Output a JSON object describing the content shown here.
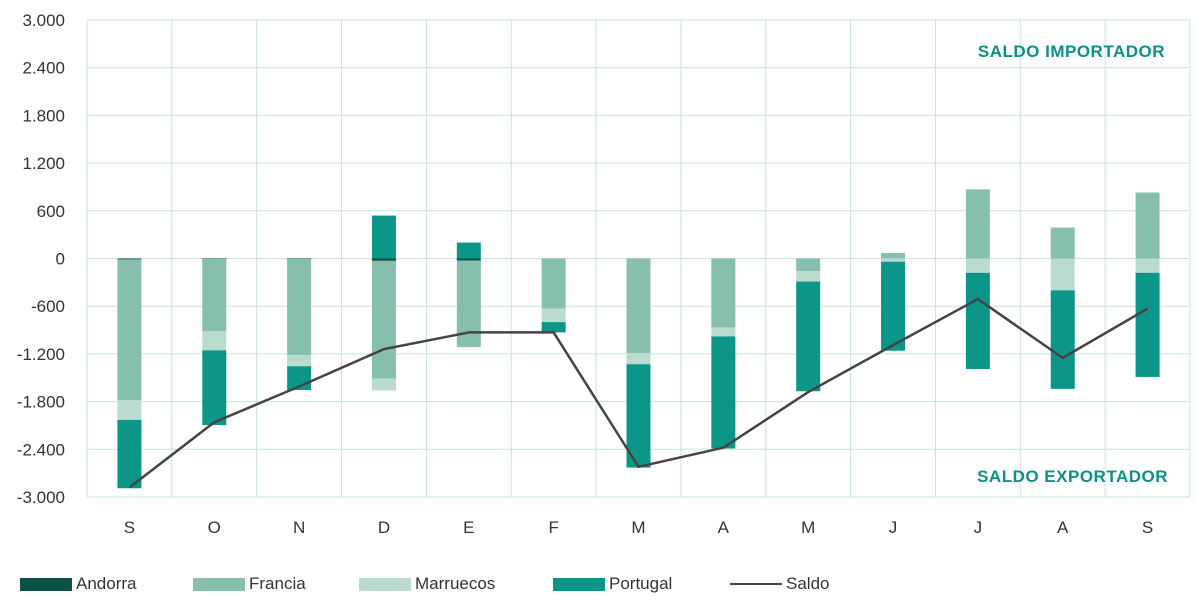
{
  "chart_data": {
    "type": "bar",
    "stacked": true,
    "categories": [
      "S",
      "O",
      "N",
      "D",
      "E",
      "F",
      "M",
      "A",
      "M",
      "J",
      "J",
      "A",
      "S"
    ],
    "yticks": [
      "3.000",
      "2.400",
      "1.800",
      "1.200",
      "600",
      "0",
      "-600",
      "-1.200",
      "-1.800",
      "-2.400",
      "-3.000"
    ],
    "ylim": [
      -3000,
      3000
    ],
    "grid": true,
    "annotations": {
      "top": "SALDO IMPORTADOR",
      "bottom": "SALDO EXPORTADOR"
    },
    "series": [
      {
        "name": "Andorra",
        "type": "bar",
        "color": "#0b5249",
        "values": [
          -10,
          -5,
          -5,
          -30,
          -25,
          0,
          0,
          0,
          0,
          0,
          0,
          0,
          0
        ]
      },
      {
        "name": "Francia",
        "type": "bar",
        "color": "#86bfae",
        "values": [
          -1770,
          -910,
          -1210,
          -1480,
          -1090,
          -630,
          -1190,
          -870,
          -160,
          70,
          870,
          390,
          830
        ]
      },
      {
        "name": "Marruecos",
        "type": "bar",
        "color": "#b9dccf",
        "values": [
          -250,
          -240,
          -140,
          -150,
          0,
          -170,
          -140,
          -110,
          -130,
          -40,
          -180,
          -400,
          -180
        ]
      },
      {
        "name": "Portugal",
        "type": "bar",
        "color": "#0b9688",
        "values": [
          -860,
          -940,
          -300,
          540,
          200,
          -130,
          -1300,
          -1410,
          -1380,
          -1120,
          -1210,
          -1240,
          -1310
        ]
      },
      {
        "name": "Saldo",
        "type": "line",
        "color": "#444444",
        "values": [
          -2880,
          -2060,
          -1610,
          -1140,
          -930,
          -930,
          -2620,
          -2380,
          -1680,
          -1090,
          -510,
          -1250,
          -630
        ]
      }
    ],
    "legend_position": "bottom"
  }
}
